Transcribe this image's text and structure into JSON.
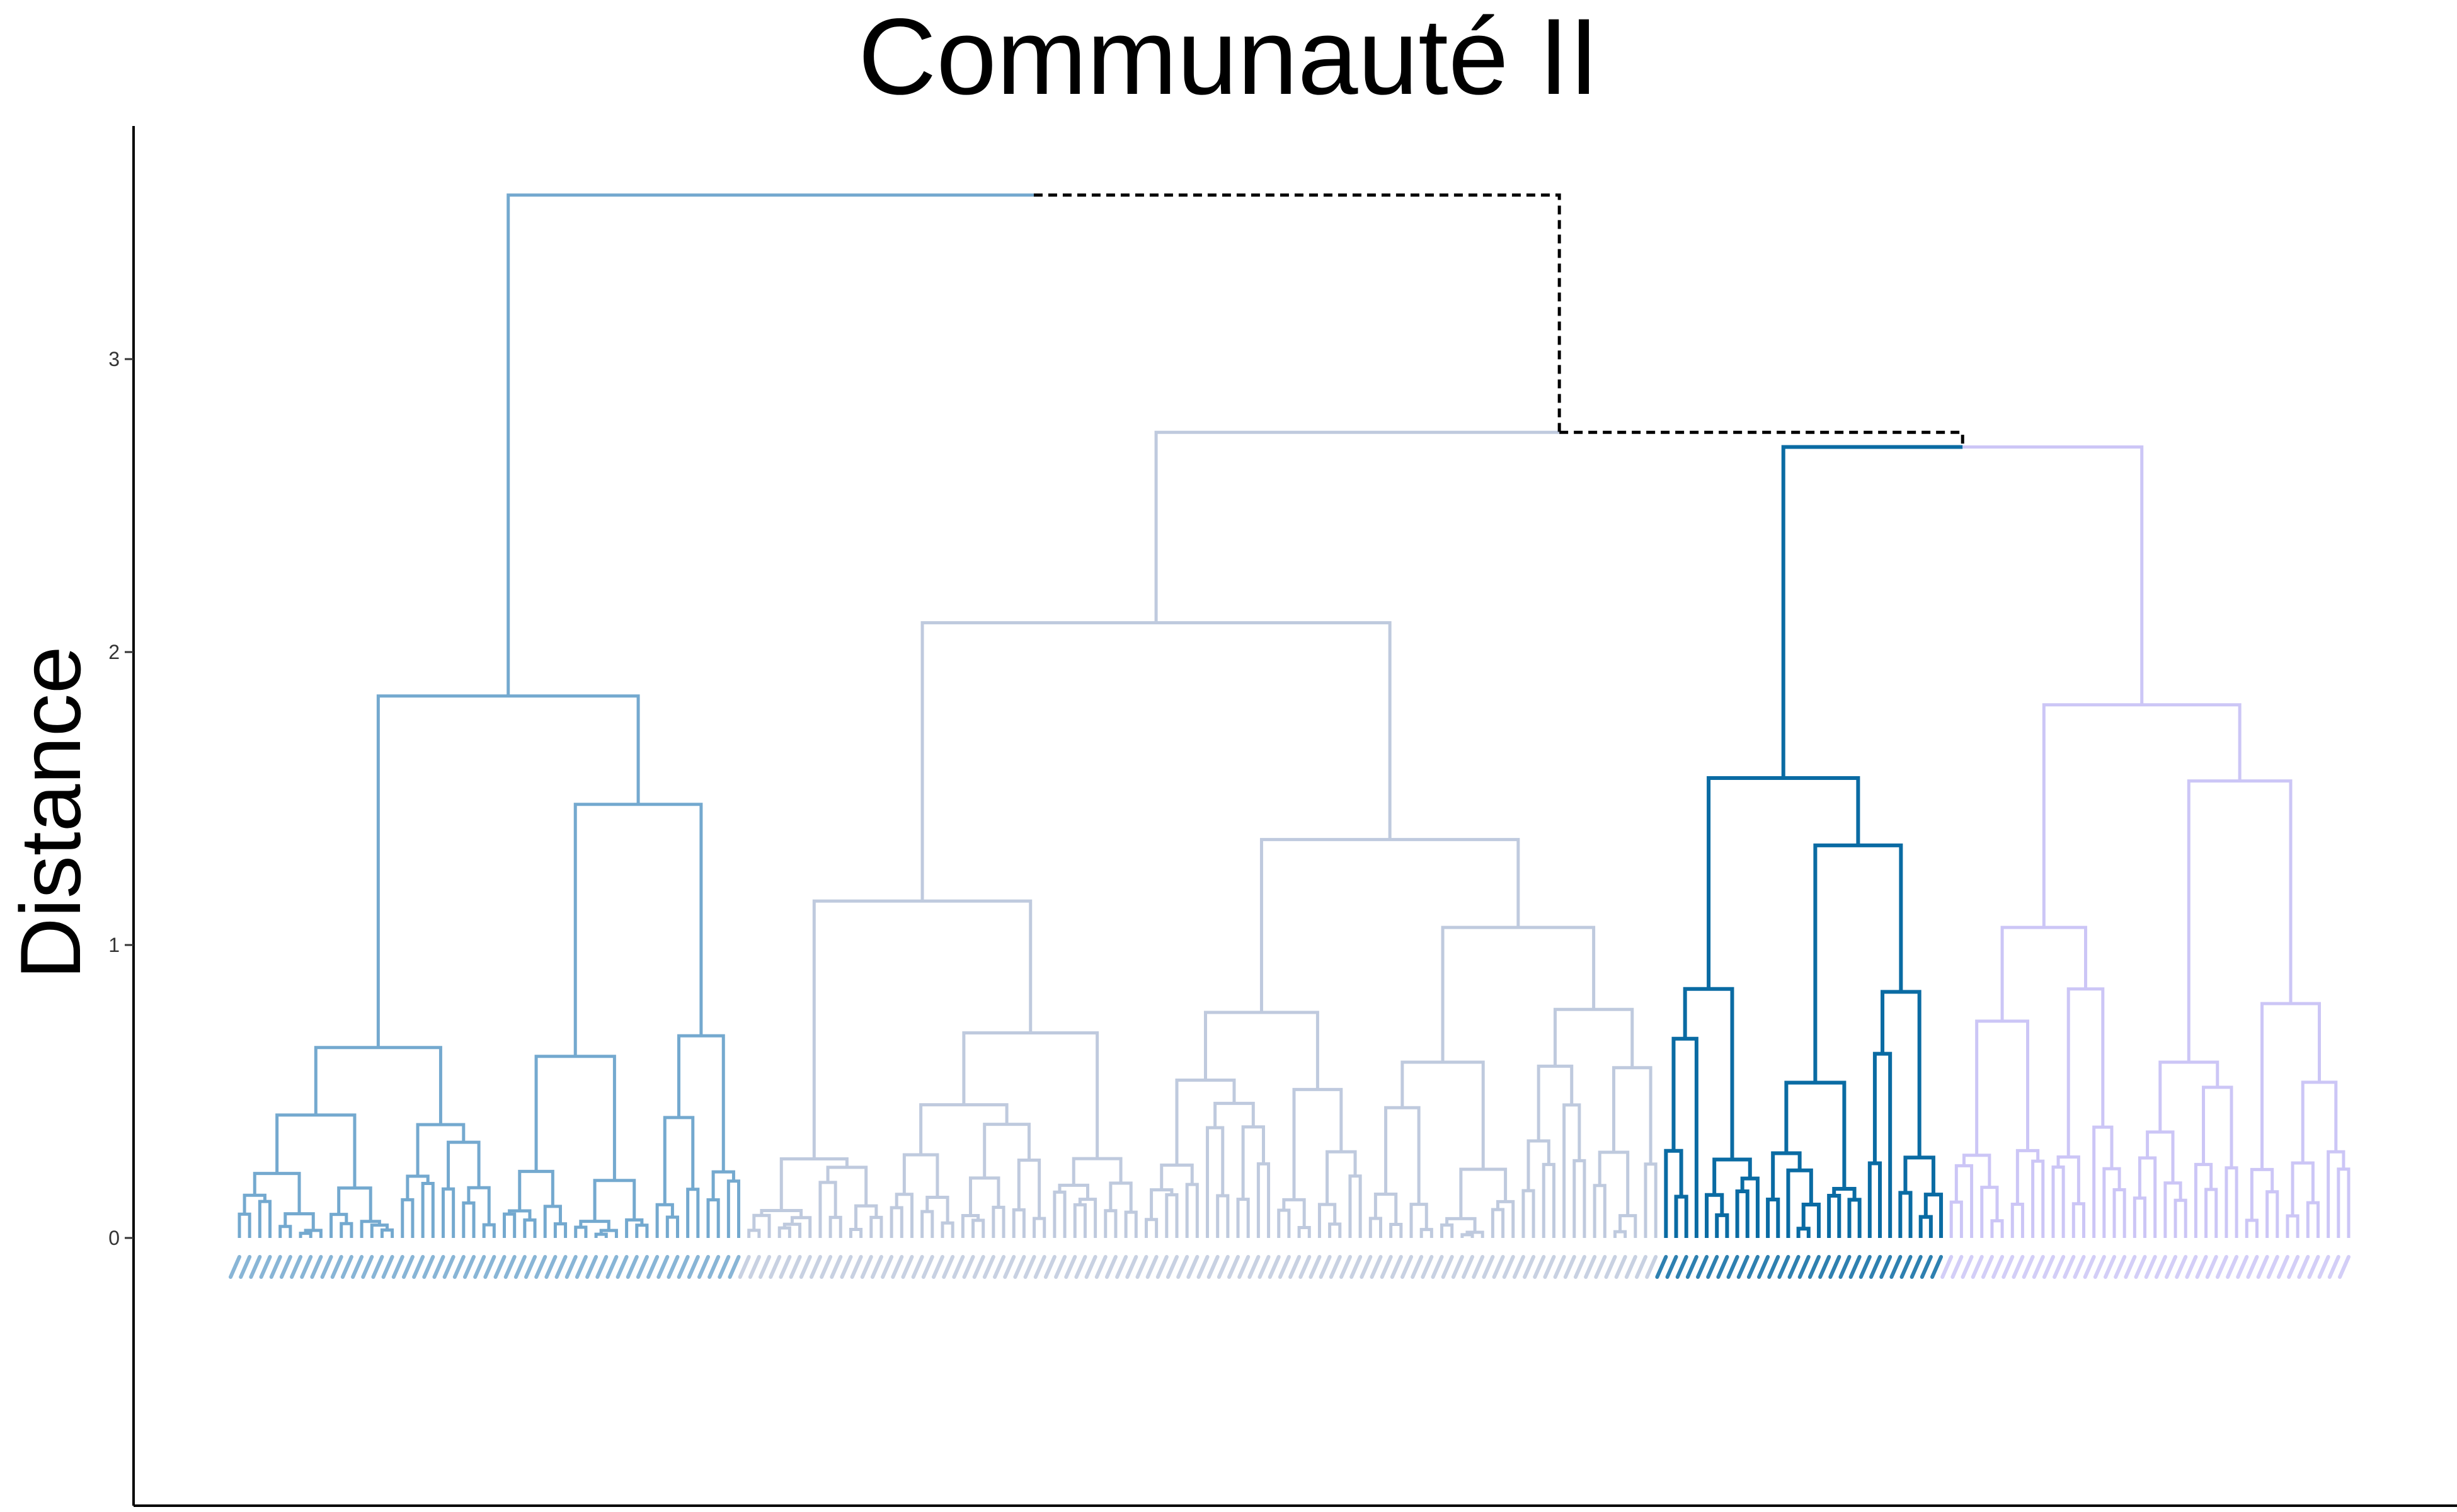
{
  "title": "Communauté II",
  "ylabel": "Distance",
  "y_axis": {
    "ticks": [
      0,
      1,
      2,
      3
    ],
    "range": [
      -0.92,
      3.78
    ]
  },
  "colors": {
    "cluster1": "#74A9CF",
    "cluster2": "#BFCADE",
    "cluster3": "#0A6BA3",
    "cluster4": "#CCC6F6",
    "dashed": "#000000"
  },
  "chart_data": {
    "type": "dendrogram",
    "root_height": 3.56,
    "clusters": [
      {
        "id": "cluster1",
        "n_leaves": 50,
        "height": 1.85,
        "subtree": {
          "h": 1.85,
          "l": {
            "h": 0.65
          },
          "r": {
            "h": 1.48,
            "l": {
              "h": 0.62
            },
            "r": {
              "h": 0.69
            }
          }
        }
      },
      {
        "id": "cluster2",
        "n_leaves": 90,
        "height": 2.1,
        "subtree": {
          "h": 2.1,
          "l": {
            "h": 1.15,
            "l": {
              "h": 0.27
            },
            "r": {
              "h": 0.7
            }
          },
          "r": {
            "h": 1.36,
            "l": {
              "h": 0.77
            },
            "r": {
              "h": 1.06,
              "l": {
                "h": 0.6
              },
              "r": {
                "h": 0.78
              }
            }
          }
        }
      },
      {
        "id": "cluster3",
        "n_leaves": 28,
        "height": 1.57,
        "subtree": {
          "h": 1.57,
          "l": {
            "h": 0.85
          },
          "r": {
            "h": 1.34,
            "l": {
              "h": 0.53
            },
            "r": {
              "h": 0.84
            }
          }
        }
      },
      {
        "id": "cluster4",
        "n_leaves": 40,
        "height": 1.82,
        "subtree": {
          "h": 1.82,
          "l": {
            "h": 1.06,
            "l": {
              "h": 0.74
            },
            "r": {
              "h": 0.85
            }
          },
          "r": {
            "h": 1.56,
            "l": {
              "h": 0.6
            },
            "r": {
              "h": 0.8
            }
          }
        }
      }
    ],
    "joins": [
      {
        "left": "cluster2",
        "right": "group34",
        "height": 2.75
      },
      {
        "left": "cluster3",
        "right": "cluster4",
        "height": 2.7,
        "name": "group34"
      },
      {
        "left": "cluster1",
        "right": "group234",
        "height": 3.56
      }
    ]
  }
}
